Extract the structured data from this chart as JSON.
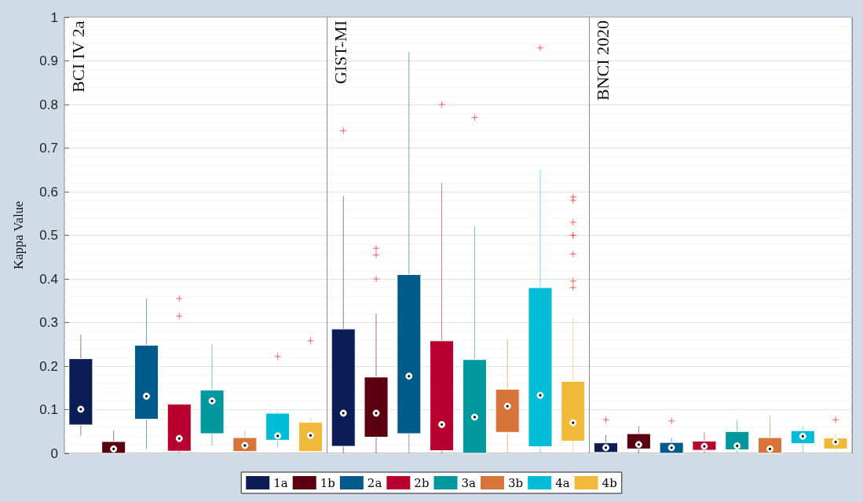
{
  "chart_data": {
    "type": "box",
    "ylabel": "Kappa Value",
    "annotations": [
      "BCI IV 2a",
      "GIST-MI",
      "BNCI 2020"
    ],
    "categories": [
      null,
      null,
      null,
      null,
      null,
      null,
      null,
      null,
      null,
      null,
      null,
      null,
      null,
      null,
      null,
      null,
      null,
      null,
      null,
      null,
      null,
      null,
      null,
      null
    ],
    "ylim": [
      0,
      1
    ],
    "yticks": [
      0,
      0.1,
      0.2,
      0.3,
      0.4,
      0.5,
      0.6,
      0.7,
      0.8,
      0.9,
      1
    ],
    "grid": "y",
    "legend": "bottom",
    "series": [
      {
        "name": "1a",
        "color": "#0c1c54",
        "boxes": [
          {
            "low": 0.04,
            "q1": 0.065,
            "median": 0.101,
            "q3": 0.217,
            "high": 0.272
          },
          null,
          null,
          null,
          null,
          null,
          null,
          null,
          {
            "low": 0,
            "q1": 0.016,
            "median": 0.092,
            "q3": 0.285,
            "high": 0.59,
            "outliers": [
              0.74
            ]
          },
          null,
          null,
          null,
          null,
          null,
          null,
          null,
          {
            "low": 0,
            "q1": 0.002,
            "median": 0.013,
            "q3": 0.024,
            "high": 0.042,
            "outliers": [
              0.077
            ]
          },
          null,
          null,
          null,
          null,
          null,
          null,
          null
        ]
      },
      {
        "name": "1b",
        "color": "#5a0010",
        "boxes": [
          null,
          {
            "low": 0,
            "q1": 0,
            "median": 0.01,
            "q3": 0.027,
            "high": 0.052
          },
          null,
          null,
          null,
          null,
          null,
          null,
          null,
          {
            "low": 0,
            "q1": 0.037,
            "median": 0.092,
            "q3": 0.175,
            "high": 0.32,
            "outliers": [
              0.47,
              0.455,
              0.4
            ]
          },
          null,
          null,
          null,
          null,
          null,
          null,
          null,
          {
            "low": 0,
            "q1": 0.01,
            "median": 0.02,
            "q3": 0.045,
            "high": 0.062
          },
          null,
          null,
          null,
          null,
          null,
          null
        ]
      },
      {
        "name": "2a",
        "color": "#005a8a",
        "boxes": [
          null,
          null,
          {
            "low": 0.01,
            "q1": 0.078,
            "median": 0.131,
            "q3": 0.248,
            "high": 0.355
          },
          null,
          null,
          null,
          null,
          null,
          null,
          null,
          {
            "low": 0,
            "q1": 0.045,
            "median": 0.177,
            "q3": 0.41,
            "high": 0.92
          },
          null,
          null,
          null,
          null,
          null,
          null,
          null,
          {
            "low": 0,
            "q1": 0,
            "median": 0.013,
            "q3": 0.025,
            "high": 0.036,
            "outliers": [
              0.074
            ]
          },
          null,
          null,
          null,
          null,
          null
        ]
      },
      {
        "name": "2b",
        "color": "#b8002e",
        "boxes": [
          null,
          null,
          null,
          {
            "low": 0,
            "q1": 0.005,
            "median": 0.034,
            "q3": 0.113,
            "high": 0.113,
            "outliers": [
              0.355,
              0.315
            ]
          },
          null,
          null,
          null,
          null,
          null,
          null,
          null,
          {
            "low": 0,
            "q1": 0.006,
            "median": 0.066,
            "q3": 0.258,
            "high": 0.62,
            "outliers": [
              0.8
            ]
          },
          null,
          null,
          null,
          null,
          null,
          null,
          null,
          {
            "low": 0,
            "q1": 0.007,
            "median": 0.016,
            "q3": 0.028,
            "high": 0.048
          },
          null,
          null,
          null,
          null
        ]
      },
      {
        "name": "3a",
        "color": "#00979e",
        "boxes": [
          null,
          null,
          null,
          null,
          {
            "low": 0.018,
            "q1": 0.045,
            "median": 0.12,
            "q3": 0.145,
            "high": 0.25
          },
          null,
          null,
          null,
          null,
          null,
          null,
          null,
          {
            "low": 0,
            "q1": 0,
            "median": 0.083,
            "q3": 0.215,
            "high": 0.52,
            "outliers": [
              0.77
            ]
          },
          null,
          null,
          null,
          null,
          null,
          null,
          null,
          {
            "low": 0,
            "q1": 0.008,
            "median": 0.017,
            "q3": 0.05,
            "high": 0.076
          },
          null,
          null,
          null
        ]
      },
      {
        "name": "3b",
        "color": "#d8743a",
        "boxes": [
          null,
          null,
          null,
          null,
          null,
          {
            "low": 0,
            "q1": 0.004,
            "median": 0.018,
            "q3": 0.036,
            "high": 0.052
          },
          null,
          null,
          null,
          null,
          null,
          null,
          null,
          {
            "low": 0,
            "q1": 0.048,
            "median": 0.108,
            "q3": 0.147,
            "high": 0.262
          },
          null,
          null,
          null,
          null,
          null,
          null,
          null,
          {
            "low": 0,
            "q1": 0,
            "median": 0.01,
            "q3": 0.036,
            "high": 0.086
          },
          null,
          null
        ]
      },
      {
        "name": "4a",
        "color": "#00bcd6",
        "boxes": [
          null,
          null,
          null,
          null,
          null,
          null,
          {
            "low": 0.014,
            "q1": 0.03,
            "median": 0.04,
            "q3": 0.092,
            "high": 0.096,
            "outliers": [
              0.222
            ]
          },
          null,
          null,
          null,
          null,
          null,
          null,
          null,
          {
            "low": 0,
            "q1": 0.015,
            "median": 0.133,
            "q3": 0.38,
            "high": 0.65,
            "outliers": [
              0.93
            ]
          },
          null,
          null,
          null,
          null,
          null,
          null,
          null,
          {
            "low": 0,
            "q1": 0.022,
            "median": 0.039,
            "q3": 0.052,
            "high": 0.062
          },
          null
        ]
      },
      {
        "name": "4b",
        "color": "#f0b93a",
        "boxes": [
          null,
          null,
          null,
          null,
          null,
          null,
          null,
          {
            "low": 0,
            "q1": 0.004,
            "median": 0.041,
            "q3": 0.071,
            "high": 0.082,
            "outliers": [
              0.258
            ]
          },
          null,
          null,
          null,
          null,
          null,
          null,
          null,
          {
            "low": 0,
            "q1": 0.028,
            "median": 0.07,
            "q3": 0.165,
            "high": 0.31,
            "outliers": [
              0.588,
              0.58,
              0.53,
              0.5,
              0.5,
              0.457,
              0.395,
              0.38
            ]
          },
          null,
          null,
          null,
          null,
          null,
          null,
          null,
          {
            "low": 0,
            "q1": 0.01,
            "median": 0.026,
            "q3": 0.035,
            "high": 0.045,
            "outliers": [
              0.077
            ]
          }
        ]
      }
    ]
  }
}
